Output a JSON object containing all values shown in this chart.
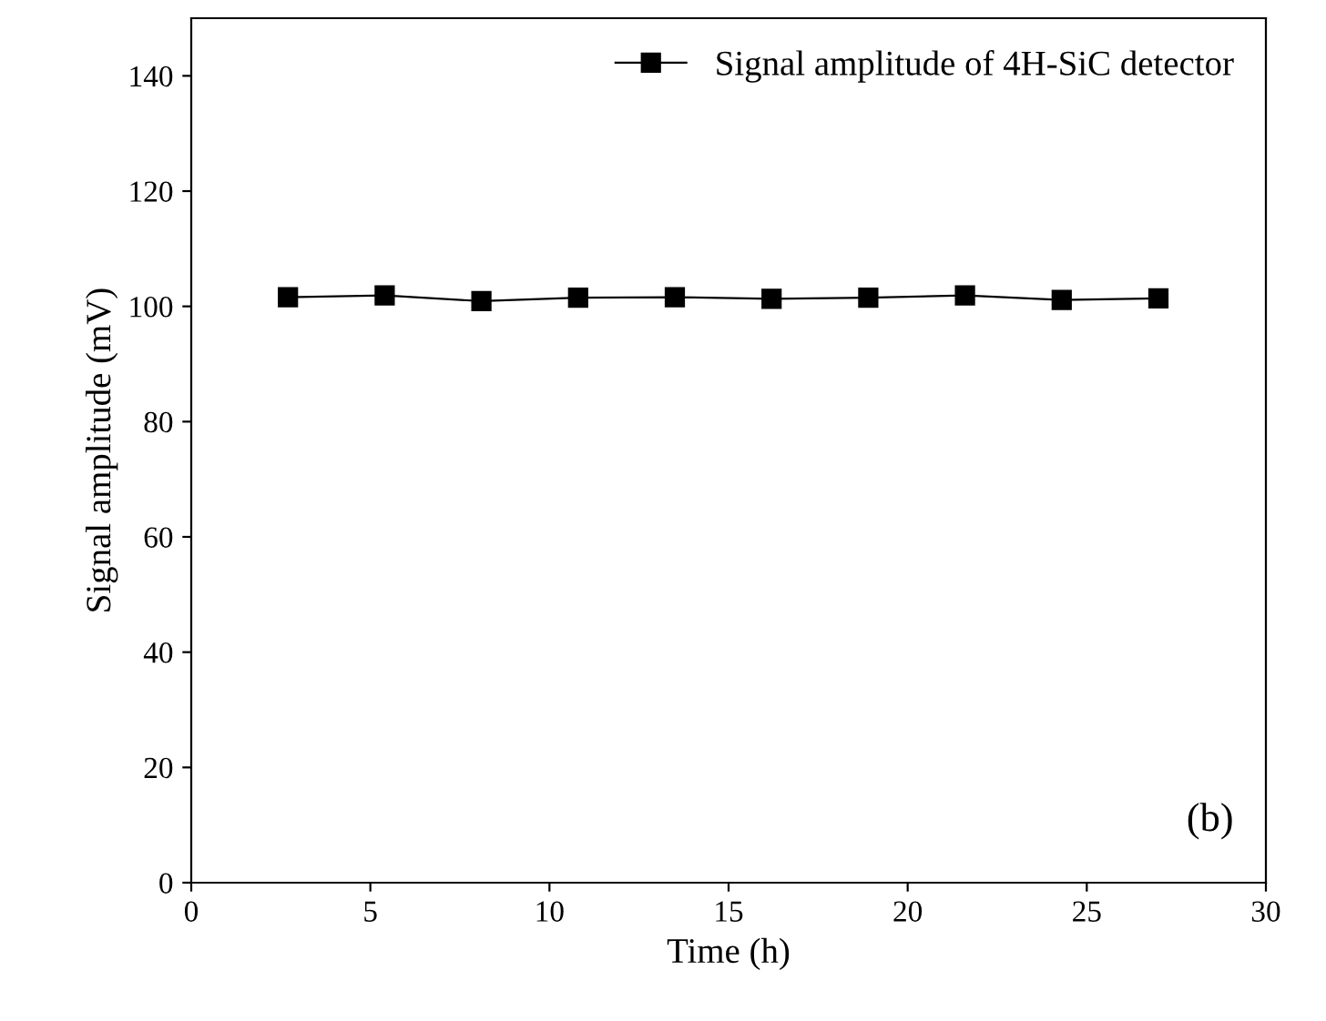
{
  "chart_data": {
    "type": "line",
    "xlabel": "Time (h)",
    "ylabel": "Signal amplitude (mV)",
    "x": [
      2.7,
      5.4,
      8.1,
      10.8,
      13.5,
      16.2,
      18.9,
      21.6,
      24.3,
      27.0
    ],
    "series": [
      {
        "name": "Signal amplitude of 4H-SiC detector",
        "color": "#000000",
        "values": [
          101.6,
          101.9,
          100.9,
          101.5,
          101.6,
          101.3,
          101.5,
          101.9,
          101.1,
          101.4
        ]
      }
    ],
    "xlim": [
      0,
      30
    ],
    "xticks": [
      0,
      5,
      10,
      15,
      20,
      25,
      30
    ],
    "ylim": [
      0,
      150
    ],
    "yticks": [
      0,
      20,
      40,
      60,
      80,
      100,
      120,
      140
    ],
    "marker": "square",
    "line_style": "solid",
    "legend": "top right",
    "grid": false,
    "annotations": [
      "(b)"
    ]
  }
}
